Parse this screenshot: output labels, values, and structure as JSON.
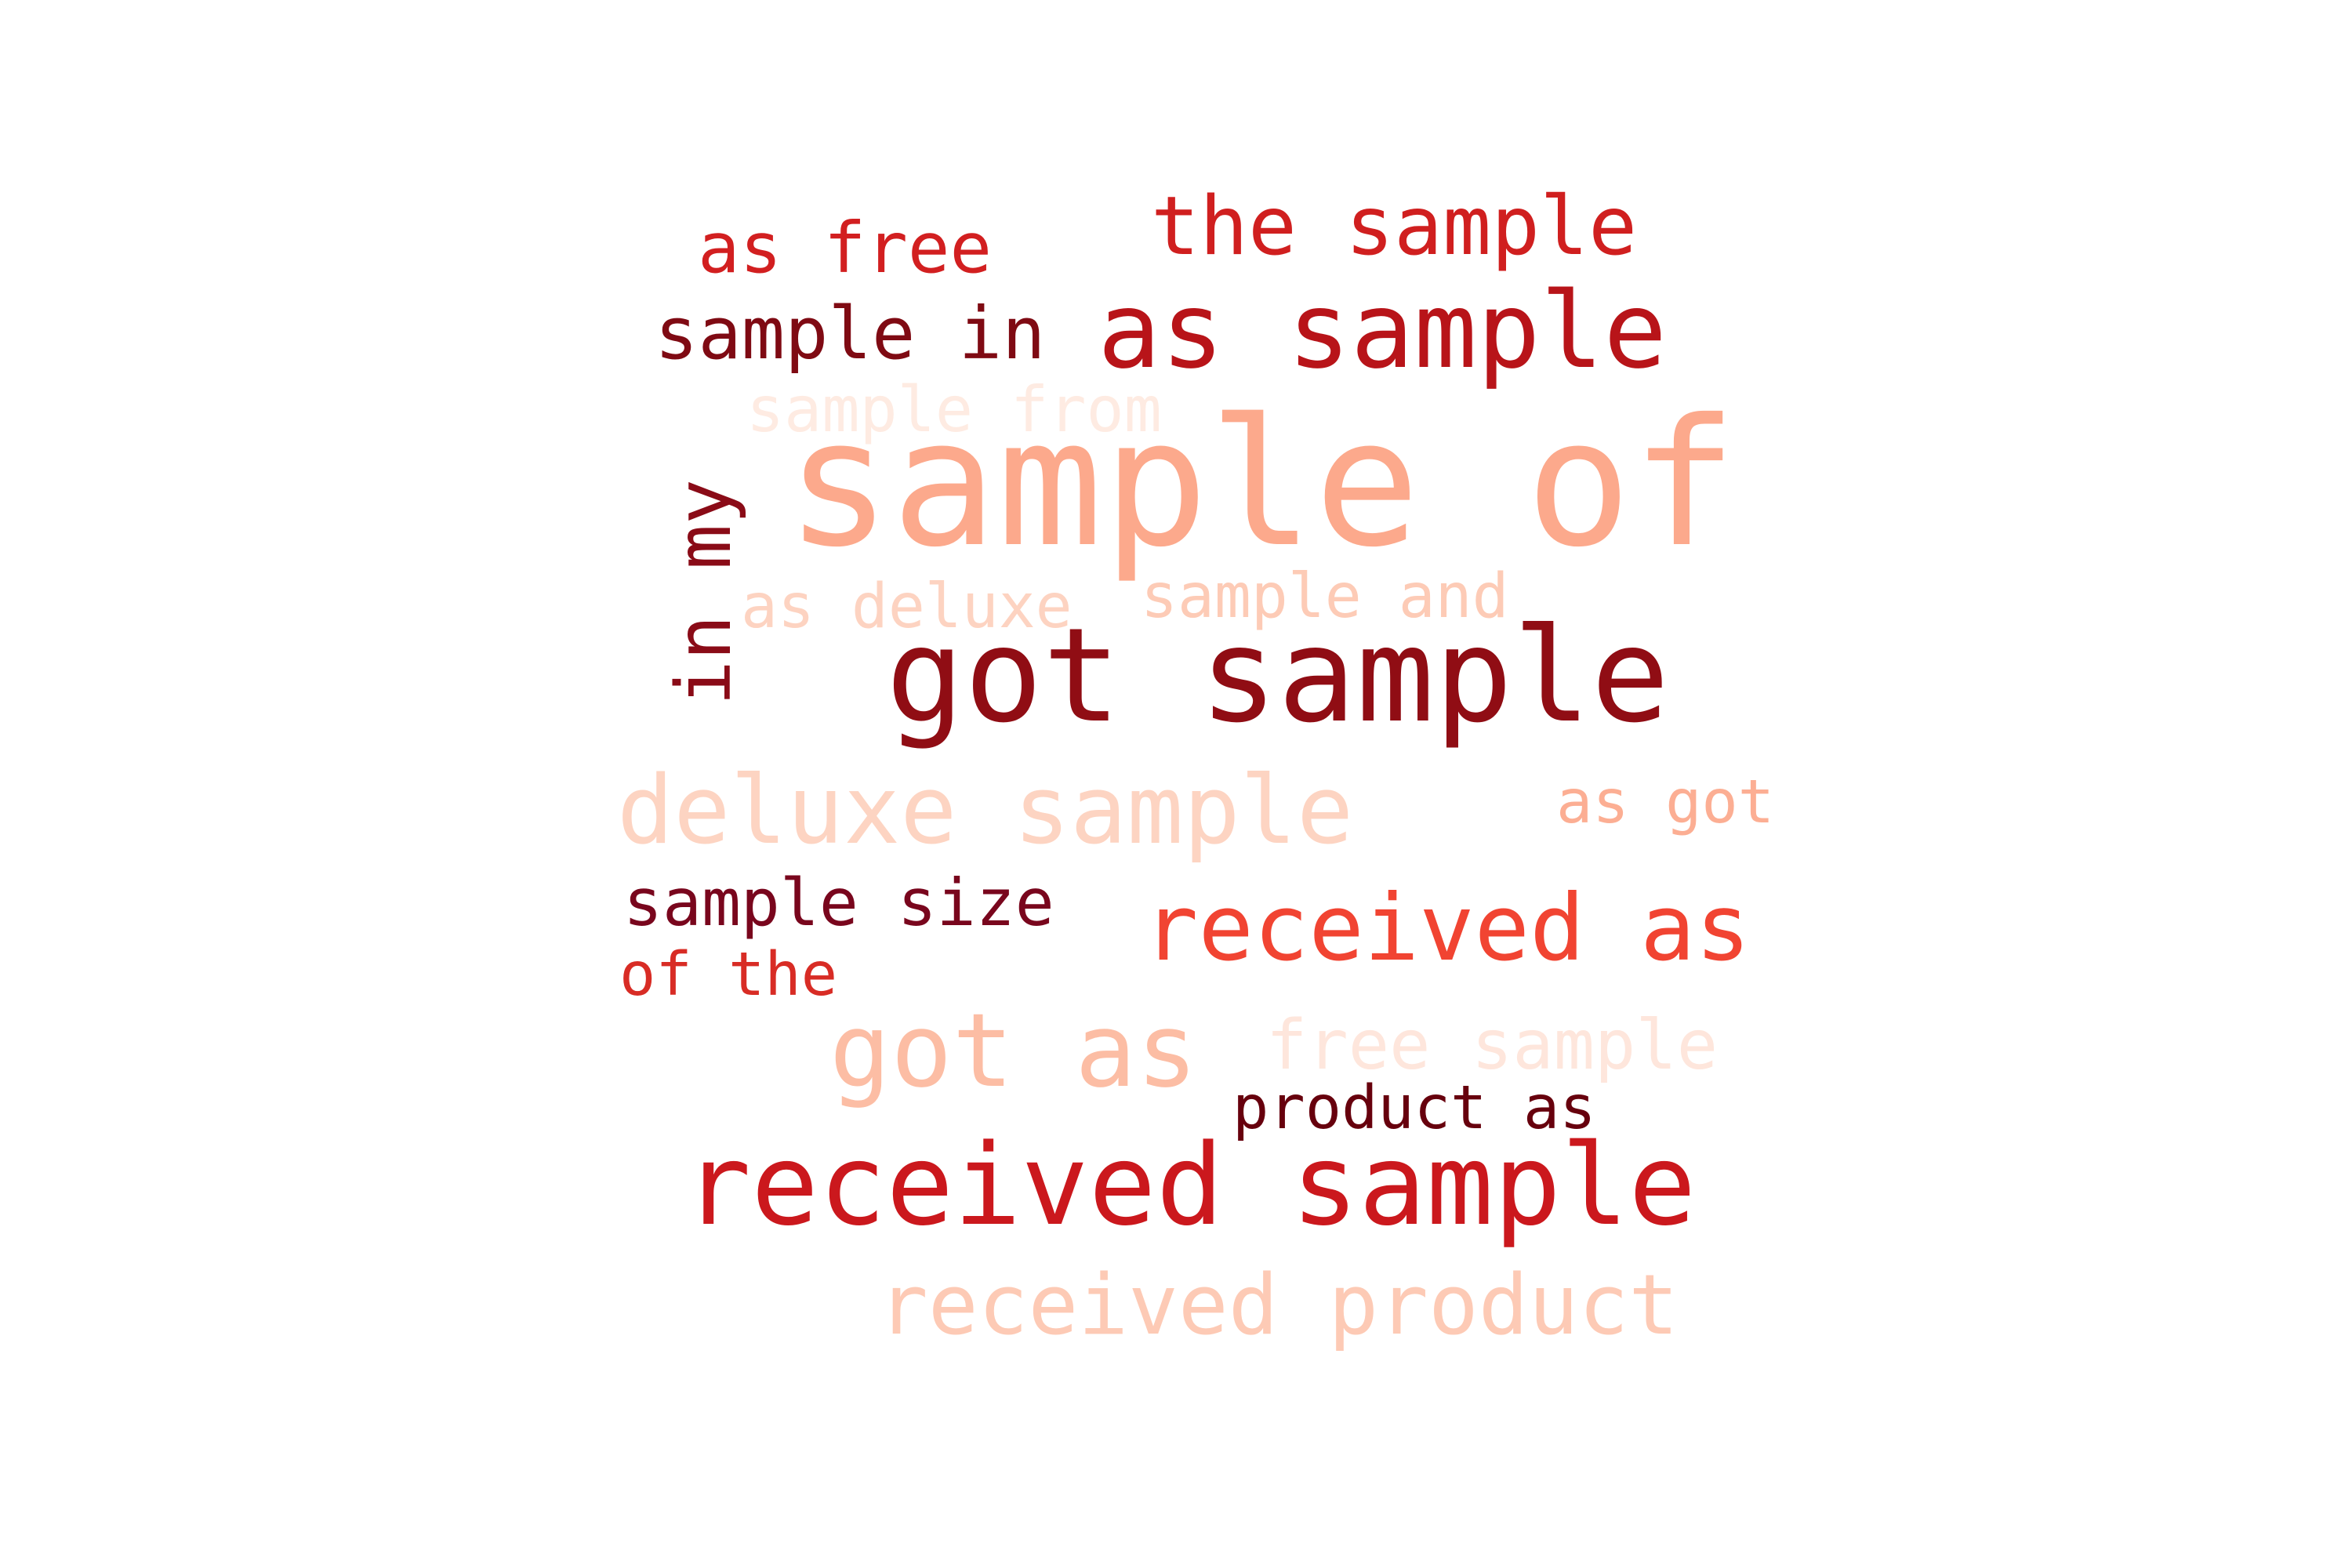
{
  "words": [
    {
      "text": "sample of",
      "color": "#fca98c"
    },
    {
      "text": "got sample",
      "color": "#900d14"
    },
    {
      "text": "received sample",
      "color": "#cb181d"
    },
    {
      "text": "as sample",
      "color": "#b81419"
    },
    {
      "text": "deluxe sample",
      "color": "#fdd4c2"
    },
    {
      "text": "received as",
      "color": "#f14432"
    },
    {
      "text": "got as",
      "color": "#fcbda4"
    },
    {
      "text": "received product",
      "color": "#fdcab5"
    },
    {
      "text": "the sample",
      "color": "#d01f1f"
    },
    {
      "text": "as free",
      "color": "#d21f20"
    },
    {
      "text": "sample in",
      "color": "#7f0a13"
    },
    {
      "text": "sample from",
      "color": "#feebe2"
    },
    {
      "text": "in my",
      "color": "#8a0b17"
    },
    {
      "text": "as deluxe",
      "color": "#fdd3c1"
    },
    {
      "text": "sample and",
      "color": "#fdcbb6"
    },
    {
      "text": "as got",
      "color": "#fcae93"
    },
    {
      "text": "sample size",
      "color": "#79061d"
    },
    {
      "text": "of the",
      "color": "#d82c25"
    },
    {
      "text": "free sample",
      "color": "#fee6dc"
    },
    {
      "text": "product as",
      "color": "#67000d"
    }
  ]
}
